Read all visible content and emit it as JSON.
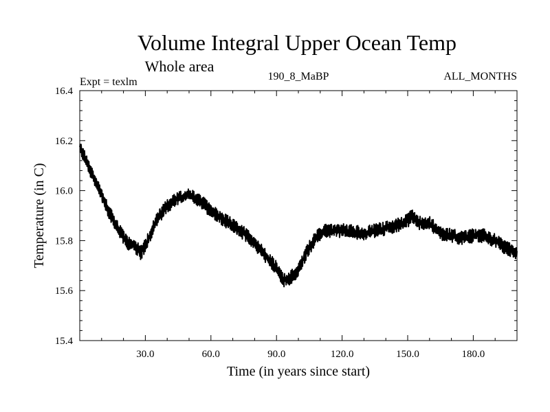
{
  "chart_data": {
    "type": "line",
    "title": "Volume Integral Upper Ocean Temp",
    "subtitle": "Whole area",
    "header_left": "Expt = texlm",
    "header_center": "190_8_MaBP",
    "header_right": "ALL_MONTHS",
    "xlabel": "Time (in years since start)",
    "ylabel": "Temperature (in C)",
    "xlim": [
      0,
      200
    ],
    "ylim": [
      15.4,
      16.4
    ],
    "xticks": [
      30,
      60,
      90,
      120,
      150,
      180
    ],
    "xtick_labels": [
      "30.0",
      "60.0",
      "90.0",
      "120.0",
      "150.0",
      "180.0"
    ],
    "yticks": [
      15.4,
      15.6,
      15.8,
      16.0,
      16.2,
      16.4
    ],
    "ytick_labels": [
      "15.4",
      "15.6",
      "15.8",
      "16.0",
      "16.2",
      "16.4"
    ],
    "grid": false,
    "series": [
      {
        "name": "Temperature",
        "color": "#000000",
        "noise_amplitude": 0.03,
        "points_per_year": 12,
        "x": [
          0,
          3,
          8,
          13,
          18,
          22,
          25,
          28,
          31,
          35,
          40,
          45,
          50,
          55,
          60,
          65,
          70,
          75,
          80,
          85,
          90,
          93,
          96,
          100,
          104,
          108,
          112,
          120,
          130,
          140,
          145,
          150,
          152,
          155,
          160,
          165,
          170,
          175,
          180,
          185,
          190,
          195,
          200
        ],
        "values": [
          16.17,
          16.12,
          16.02,
          15.92,
          15.84,
          15.79,
          15.78,
          15.75,
          15.8,
          15.88,
          15.94,
          15.97,
          15.98,
          15.96,
          15.92,
          15.89,
          15.86,
          15.83,
          15.79,
          15.74,
          15.69,
          15.64,
          15.65,
          15.68,
          15.76,
          15.81,
          15.84,
          15.84,
          15.83,
          15.85,
          15.86,
          15.88,
          15.9,
          15.87,
          15.87,
          15.83,
          15.82,
          15.81,
          15.82,
          15.82,
          15.8,
          15.77,
          15.75
        ]
      }
    ]
  }
}
